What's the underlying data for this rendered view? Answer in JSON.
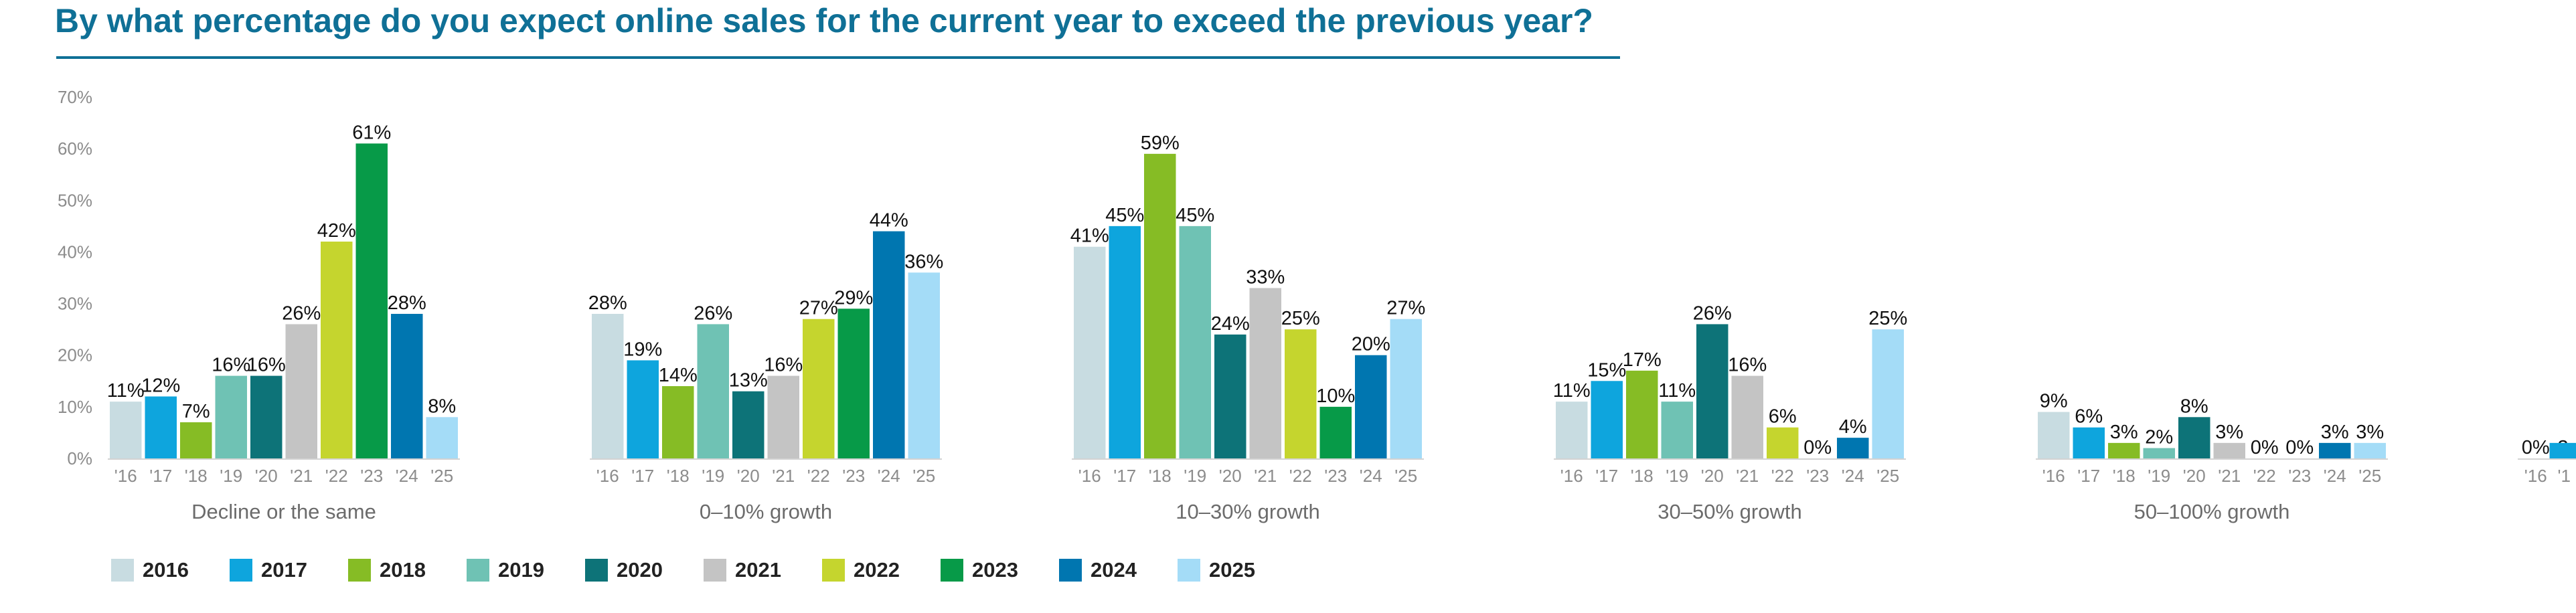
{
  "chart_data": {
    "type": "bar",
    "title": "By what percentage do you expect online sales for the current year to exceed the previous year?",
    "ylim": [
      0,
      70
    ],
    "yticks": [
      "0%",
      "10%",
      "20%",
      "30%",
      "40%",
      "50%",
      "60%",
      "70%"
    ],
    "grid": false,
    "legend_position": "bottom-left",
    "year_ticks": [
      "'16",
      "'17",
      "'18",
      "'19",
      "'20",
      "'21",
      "'22",
      "'23",
      "'24",
      "'25"
    ],
    "categories": [
      "Decline or the same",
      "0–10% growth",
      "10–30% growth",
      "30–50% growth",
      "50–100% growth"
    ],
    "series": [
      {
        "name": "2016",
        "color": "#c8dce1",
        "values": [
          11,
          28,
          41,
          11,
          9
        ]
      },
      {
        "name": "2017",
        "color": "#0ea5dd",
        "values": [
          12,
          19,
          45,
          15,
          6
        ]
      },
      {
        "name": "2018",
        "color": "#86bc25",
        "values": [
          7,
          14,
          59,
          17,
          3
        ]
      },
      {
        "name": "2019",
        "color": "#6fc2b4",
        "values": [
          16,
          26,
          45,
          11,
          2
        ]
      },
      {
        "name": "2020",
        "color": "#0d7378",
        "values": [
          16,
          13,
          24,
          26,
          8
        ]
      },
      {
        "name": "2021",
        "color": "#c4c4c4",
        "values": [
          26,
          16,
          33,
          16,
          3
        ]
      },
      {
        "name": "2022",
        "color": "#c5d52e",
        "values": [
          42,
          27,
          25,
          6,
          0
        ]
      },
      {
        "name": "2023",
        "color": "#079a48",
        "values": [
          61,
          29,
          10,
          0,
          0
        ]
      },
      {
        "name": "2024",
        "color": "#0076b0",
        "values": [
          28,
          44,
          20,
          4,
          3
        ]
      },
      {
        "name": "2025",
        "color": "#a4dcf7",
        "values": [
          8,
          36,
          27,
          25,
          3
        ]
      }
    ],
    "partial_category": {
      "value_labels": [
        "0%",
        "3"
      ],
      "year_ticks": [
        "'16",
        "'1"
      ]
    }
  }
}
